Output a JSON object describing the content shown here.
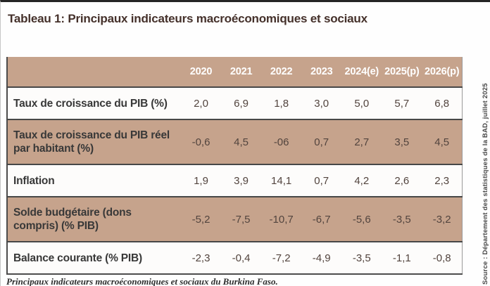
{
  "page": {
    "title": "Tableau 1: Principaux indicateurs macroéconomiques et sociaux"
  },
  "chart_data": {
    "type": "table",
    "title": "Principaux indicateurs macroéconomiques et sociaux",
    "columns": [
      "2020",
      "2021",
      "2022",
      "2023",
      "2024(e)",
      "2025(p)",
      "2026(p)"
    ],
    "rows": [
      {
        "label": "Taux de croissance du PIB (%)",
        "values": [
          "2,0",
          "6,9",
          "1,8",
          "3,0",
          "5,0",
          "5,7",
          "6,8"
        ]
      },
      {
        "label": "Taux de croissance du PIB réel par habitant (%)",
        "values": [
          "-0,6",
          "4,5",
          "-06",
          "0,7",
          "2,7",
          "3,5",
          "4,5"
        ]
      },
      {
        "label": "Inflation",
        "values": [
          "1,9",
          "3,9",
          "14,1",
          "0,7",
          "4,2",
          "2,6",
          "2,3"
        ]
      },
      {
        "label": "Solde budgétaire (dons compris) (% PIB)",
        "values": [
          "-5,2",
          "-7,5",
          "-10,7",
          "-6,7",
          "-5,6",
          "-3,5",
          "-3,2"
        ]
      },
      {
        "label": "Balance courante (% PIB)",
        "values": [
          "-2,3",
          "-0,4",
          "-7,2",
          "-4,9",
          "-3,5",
          "-1,1",
          "-0,8"
        ]
      }
    ]
  },
  "caption": "Principaux indicateurs macroéconomiques et sociaux du Burkina Faso.",
  "source_note": "Source : Département des statistiques de la BAD, juillet 2025",
  "colors": {
    "tan": "#c6a38c",
    "header_text": "#ffffff",
    "row_separator": "#474747",
    "title_text": "#44302a"
  }
}
